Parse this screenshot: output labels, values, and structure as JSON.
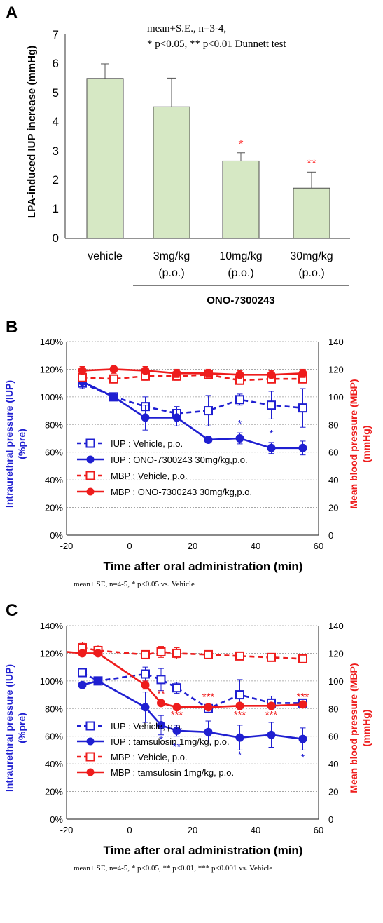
{
  "chart_data": [
    {
      "panel": "A",
      "type": "bar",
      "ylabel": "LPA-induced IUP increase (mmHg)",
      "ylim": [
        0,
        7
      ],
      "yticks": [
        "0",
        "1",
        "2",
        "3",
        "4",
        "5",
        "6",
        "7"
      ],
      "categories": [
        {
          "line1": "vehicle",
          "line2": ""
        },
        {
          "line1": "3mg/kg",
          "line2": "(p.o.)"
        },
        {
          "line1": "10mg/kg",
          "line2": "(p.o.)"
        },
        {
          "line1": "30mg/kg",
          "line2": "(p.o.)"
        }
      ],
      "values": [
        5.47,
        4.5,
        2.65,
        1.72
      ],
      "errors": [
        0.5,
        0.98,
        0.28,
        0.55
      ],
      "significance": [
        "",
        "",
        "*",
        "**"
      ],
      "annotation_line1": "mean+S.E., n=3-4,",
      "annotation_line2": "* p<0.05, ** p<0.01 Dunnett test",
      "group_label": "ONO-7300243",
      "colors": {
        "bar_fill": "#d6e8c4",
        "bar_edge": "#4d4d4d",
        "sig": "#ff3b3b"
      }
    },
    {
      "panel": "B",
      "type": "line",
      "xlabel": "Time after oral administration  (min)",
      "ylabel_left_line1": "Intraurethral pressure (IUP)",
      "ylabel_left_line2": "(%pre)",
      "ylabel_right_line1": "Mean blood pressure (MBP)",
      "ylabel_right_line2": "(mmHg)",
      "xlim": [
        -20,
        60
      ],
      "xticks": [
        "-20",
        "0",
        "20",
        "40",
        "60"
      ],
      "ylim_left": [
        0,
        140
      ],
      "ylim_right": [
        0,
        140
      ],
      "yticks_left": [
        "0%",
        "20%",
        "40%",
        "60%",
        "80%",
        "100%",
        "120%",
        "140%"
      ],
      "yticks_right": [
        "0",
        "20",
        "40",
        "60",
        "80",
        "100",
        "120",
        "140"
      ],
      "footnote": "mean± SE, n=4-5, * p<0.05 vs. Vehicle",
      "series": [
        {
          "name": "IUP : Vehicle, p.o.",
          "color": "#1f1fd1",
          "dash": true,
          "marker": "open-square",
          "x": [
            -15,
            -5,
            5,
            15,
            25,
            35,
            45,
            55
          ],
          "y": [
            110,
            100,
            93,
            88,
            90,
            98,
            94,
            92
          ],
          "err": [
            4,
            2,
            7,
            5,
            11,
            4,
            10,
            14
          ]
        },
        {
          "name": "IUP : ONO-7300243 30mg/kg,p.o.",
          "color": "#1f1fd1",
          "dash": false,
          "marker": "filled-circle",
          "x": [
            -15,
            -5,
            5,
            15,
            25,
            35,
            45,
            55
          ],
          "y": [
            111,
            100,
            85,
            85,
            69,
            70,
            63,
            63
          ],
          "err": [
            5,
            2,
            9,
            6,
            2,
            4,
            4,
            5
          ]
        },
        {
          "name": "MBP : Vehicle, p.o.",
          "color": "#ee1c1c",
          "dash": true,
          "marker": "open-square",
          "x": [
            -15,
            -5,
            5,
            15,
            25,
            35,
            45,
            55
          ],
          "y": [
            114,
            113,
            115,
            115,
            116,
            112,
            113,
            113
          ],
          "err": [
            3,
            3,
            3,
            3,
            3,
            3,
            3,
            3
          ]
        },
        {
          "name": "MBP : ONO-7300243 30mg/kg,p.o.",
          "color": "#ee1c1c",
          "dash": false,
          "marker": "filled-circle",
          "x": [
            -15,
            -5,
            5,
            15,
            25,
            35,
            45,
            55
          ],
          "y": [
            119,
            120,
            119,
            117,
            117,
            116,
            116,
            117
          ],
          "err": [
            3,
            3,
            3,
            3,
            3,
            3,
            3,
            3
          ]
        }
      ],
      "significance_marks": [
        {
          "x": 35,
          "y": 78,
          "text": "*",
          "color": "#1f1fd1"
        },
        {
          "x": 45,
          "y": 71,
          "text": "*",
          "color": "#1f1fd1"
        }
      ]
    },
    {
      "panel": "C",
      "type": "line",
      "xlabel": "Time after oral administration  (min)",
      "ylabel_left_line1": "Intraurethral pressure (IUP)",
      "ylabel_left_line2": "(%pre)",
      "ylabel_right_line1": "Mean blood pressure (MBP)",
      "ylabel_right_line2": "(mmHg)",
      "xlim": [
        -20,
        60
      ],
      "xticks": [
        "-20",
        "0",
        "20",
        "40",
        "60"
      ],
      "ylim_left": [
        0,
        140
      ],
      "ylim_right": [
        0,
        140
      ],
      "yticks_left": [
        "0%",
        "20%",
        "40%",
        "60%",
        "80%",
        "100%",
        "120%",
        "140%"
      ],
      "yticks_right": [
        "0",
        "20",
        "40",
        "60",
        "80",
        "100",
        "120",
        "140"
      ],
      "footnote": "mean± SE, n=4-5, * p<0.05, ** p<0.01, *** p<0.001 vs. Vehicle",
      "series": [
        {
          "name": "IUP : Vehicle, p.o.",
          "color": "#1f1fd1",
          "dash": true,
          "marker": "open-square",
          "x": [
            -15,
            -10,
            5,
            10,
            15,
            25,
            35,
            45,
            55
          ],
          "y": [
            106,
            100,
            105,
            101,
            95,
            80,
            90,
            84,
            84
          ],
          "err": [
            3,
            2,
            5,
            8,
            4,
            2,
            11,
            5,
            3
          ]
        },
        {
          "name": "IUP : tamsulosin 1mg/kg, p.o.",
          "color": "#1f1fd1",
          "dash": false,
          "marker": "filled-circle",
          "x": [
            -15,
            -10,
            5,
            10,
            15,
            25,
            35,
            45,
            55
          ],
          "y": [
            97,
            100,
            81,
            68,
            64,
            63,
            59,
            61,
            58
          ],
          "err": [
            2,
            2,
            11,
            7,
            4,
            8,
            9,
            9,
            8
          ]
        },
        {
          "name": "MBP : Vehicle, p.o.",
          "color": "#ee1c1c",
          "dash": true,
          "marker": "open-square",
          "x": [
            -15,
            -10,
            5,
            10,
            15,
            25,
            35,
            45,
            55
          ],
          "y": [
            124,
            122,
            119,
            121,
            120,
            119,
            118,
            117,
            116
          ],
          "err": [
            4,
            4,
            3,
            4,
            4,
            2,
            2,
            2,
            2
          ]
        },
        {
          "name": "MBP : tamsulosin 1mg/kg, p.o.",
          "color": "#ee1c1c",
          "dash": false,
          "marker": "filled-circle",
          "x": [
            -20,
            -15,
            -10,
            5,
            10,
            15,
            25,
            35,
            45,
            55
          ],
          "y": [
            121,
            120,
            120,
            97,
            84,
            81,
            81,
            82,
            82,
            83
          ],
          "err": [
            0,
            2,
            2,
            3,
            2,
            2,
            2,
            2,
            2,
            2
          ],
          "marker_skip_first": true
        }
      ],
      "significance_marks": [
        {
          "x": 10,
          "y": 88,
          "text": "**",
          "color": "#ee1c1c"
        },
        {
          "x": 25,
          "y": 86,
          "text": "***",
          "color": "#ee1c1c"
        },
        {
          "x": 15,
          "y": 73,
          "text": "***",
          "color": "#ee1c1c"
        },
        {
          "x": 35,
          "y": 73,
          "text": "***",
          "color": "#ee1c1c"
        },
        {
          "x": 45,
          "y": 73,
          "text": "***",
          "color": "#ee1c1c"
        },
        {
          "x": 55,
          "y": 86,
          "text": "***",
          "color": "#ee1c1c"
        },
        {
          "x": 10,
          "y": 55,
          "text": "*",
          "color": "#1f1fd1"
        },
        {
          "x": 15,
          "y": 50,
          "text": "**",
          "color": "#1f1fd1"
        },
        {
          "x": 35,
          "y": 44,
          "text": "*",
          "color": "#1f1fd1"
        },
        {
          "x": 55,
          "y": 42,
          "text": "*",
          "color": "#1f1fd1"
        }
      ]
    }
  ],
  "panel_labels": [
    "A",
    "B",
    "C"
  ]
}
